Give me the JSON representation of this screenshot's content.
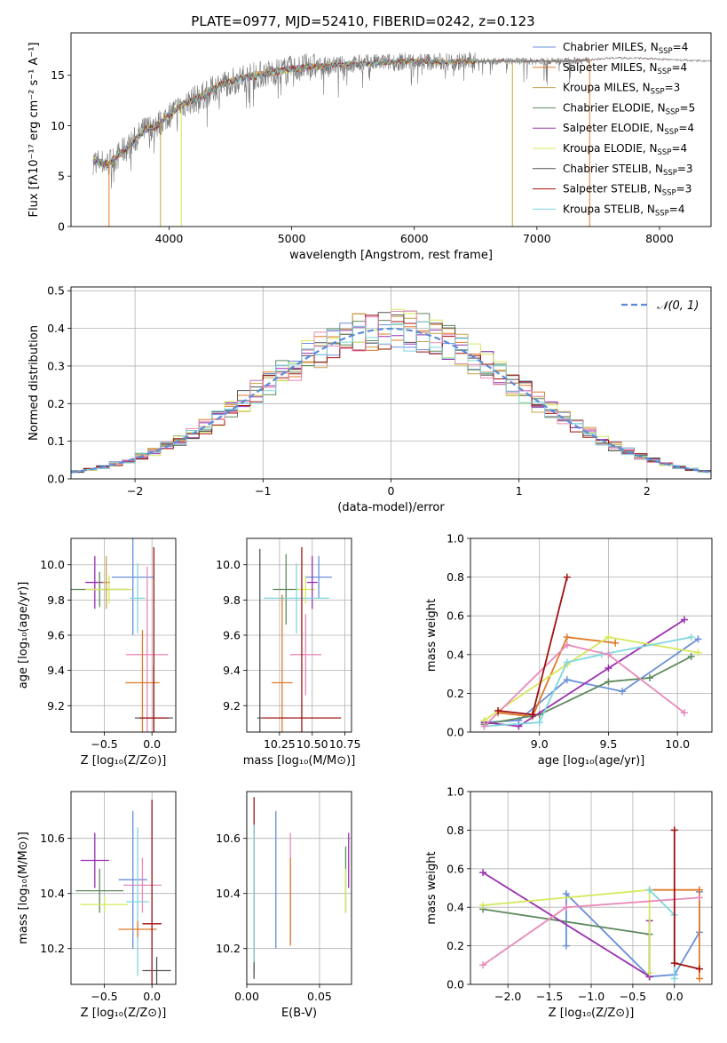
{
  "chart_data": [
    {
      "id": "spectrum",
      "type": "line",
      "title": "PLATE=0977, MJD=52410, FIBERID=0242, z=0.123",
      "xlabel": "wavelength [Angstrom, rest frame]",
      "ylabel": "Flux [fλ10⁻¹⁷ erg cm⁻² s⁻¹ A⁻¹]",
      "xlim": [
        3200,
        8420
      ],
      "ylim": [
        0,
        19.2
      ],
      "xticks": [
        4000,
        5000,
        6000,
        7000,
        8000
      ],
      "yticks": [
        0,
        5,
        10,
        15
      ],
      "grid": false,
      "legend_position": "top-right",
      "spectrum_knots": {
        "x": [
          3380,
          3500,
          3600,
          3700,
          3800,
          3900,
          4000,
          4100,
          4200,
          4300,
          4400,
          4600,
          4800,
          5000,
          5200,
          5500,
          5800,
          6000,
          6200,
          6500,
          6800,
          7000,
          7200,
          7400,
          7600,
          7800,
          8000,
          8200,
          8400
        ],
        "y": [
          6.5,
          6.2,
          7.2,
          8.3,
          9.6,
          10.0,
          11.1,
          12.0,
          12.6,
          13.1,
          14.0,
          14.7,
          15.2,
          15.6,
          15.9,
          16.1,
          16.3,
          16.4,
          16.3,
          16.4,
          16.4,
          16.4,
          16.4,
          16.5,
          16.7,
          16.7,
          16.6,
          16.5,
          16.4
        ]
      },
      "legend": [
        {
          "label": "Chabrier MILES, N",
          "sub": "SSP",
          "suffix": "=4",
          "color": "#6a8fd9"
        },
        {
          "label": "Salpeter MILES, N",
          "sub": "SSP",
          "suffix": "=4",
          "color": "#e07b2a"
        },
        {
          "label": "Kroupa MILES, N",
          "sub": "SSP",
          "suffix": "=3",
          "color": "#c8a24a"
        },
        {
          "label": "Chabrier ELODIE, N",
          "sub": "SSP",
          "suffix": "=5",
          "color": "#5e8a5e"
        },
        {
          "label": "Salpeter ELODIE, N",
          "sub": "SSP",
          "suffix": "=4",
          "color": "#9b2fb0"
        },
        {
          "label": "Kroupa ELODIE, N",
          "sub": "SSP",
          "suffix": "=4",
          "color": "#d6e85a"
        },
        {
          "label": "Chabrier STELIB, N",
          "sub": "SSP",
          "suffix": "=3",
          "color": "#555555"
        },
        {
          "label": "Salpeter STELIB, N",
          "sub": "SSP",
          "suffix": "=3",
          "color": "#a01010"
        },
        {
          "label": "Kroupa STELIB, N",
          "sub": "SSP",
          "suffix": "=4",
          "color": "#7fd6df"
        }
      ]
    },
    {
      "id": "residuals",
      "type": "line",
      "xlabel": "(data-model)/error",
      "ylabel": "Normed distribution",
      "xlim": [
        -2.5,
        2.5
      ],
      "ylim": [
        0,
        0.51
      ],
      "xticks": [
        -2,
        -1,
        0,
        1,
        2
      ],
      "yticks": [
        0.0,
        0.1,
        0.2,
        0.3,
        0.4,
        0.5
      ],
      "grid": true,
      "legend_position": "top-right",
      "reference_label": "𝒩(0, 1)",
      "reference_color": "#5b8bd6",
      "bin_width": 0.1,
      "hist_colors": [
        "#6a8fd9",
        "#e07b2a",
        "#c8a24a",
        "#5e8a5e",
        "#9b2fb0",
        "#d6e85a",
        "#555555",
        "#a01010",
        "#e889b8",
        "#7fd6df"
      ]
    },
    {
      "id": "age_vs_Z",
      "type": "scatter",
      "xlabel": "Z [log₁₀(Z/Z⊙)]",
      "ylabel": "age  [log₁₀(age/yr)]",
      "xlim": [
        -0.85,
        0.25
      ],
      "ylim": [
        9.05,
        10.15
      ],
      "xticks": [
        -0.5,
        0.0
      ],
      "yticks": [
        9.2,
        9.4,
        9.6,
        9.8,
        10.0
      ],
      "grid": true,
      "points": [
        {
          "x": -0.6,
          "y": 9.9,
          "xerr": 0.1,
          "yerr": 0.15,
          "color": "#9b2fb0"
        },
        {
          "x": -0.55,
          "y": 9.86,
          "xerr": 0.3,
          "yerr": 0.1,
          "color": "#5e8a5e"
        },
        {
          "x": -0.45,
          "y": 9.86,
          "xerr": 0.25,
          "yerr": 0.08,
          "color": "#d6e85a"
        },
        {
          "x": -0.48,
          "y": 9.9,
          "xerr": 0.04,
          "yerr": 0.15,
          "color": "#c8a24a"
        },
        {
          "x": -0.2,
          "y": 9.93,
          "xerr": 0.22,
          "yerr": 0.33,
          "color": "#6a8fd9"
        },
        {
          "x": -0.15,
          "y": 9.81,
          "xerr": 0.08,
          "yerr": 0.2,
          "color": "#7fd6df"
        },
        {
          "x": -0.05,
          "y": 9.49,
          "xerr": 0.22,
          "yerr": 0.5,
          "color": "#e889b8"
        },
        {
          "x": -0.1,
          "y": 9.33,
          "xerr": 0.18,
          "yerr": 0.3,
          "color": "#e07b2a"
        },
        {
          "x": 0.02,
          "y": 9.13,
          "xerr": 0.2,
          "yerr": 0.3,
          "color": "#555555"
        },
        {
          "x": 0.02,
          "y": 9.13,
          "xerr": 0.15,
          "yerr": 0.97,
          "color": "#a01010"
        }
      ]
    },
    {
      "id": "age_vs_mass",
      "type": "scatter",
      "xlabel": "mass [log₁₀(M/M⊙)]",
      "ylabel": "",
      "xlim": [
        10.0,
        10.8
      ],
      "ylim": [
        9.05,
        10.15
      ],
      "xticks": [
        10.25,
        10.5,
        10.75
      ],
      "yticks": [
        9.2,
        9.4,
        9.6,
        9.8,
        10.0
      ],
      "grid": true,
      "points": [
        {
          "x": 10.55,
          "y": 9.93,
          "xerr": 0.1,
          "yerr": 0.12,
          "color": "#6a8fd9"
        },
        {
          "x": 10.3,
          "y": 9.86,
          "xerr": 0.1,
          "yerr": 0.2,
          "color": "#5e8a5e"
        },
        {
          "x": 10.45,
          "y": 9.86,
          "xerr": 0.07,
          "yerr": 0.08,
          "color": "#d6e85a"
        },
        {
          "x": 10.5,
          "y": 9.9,
          "xerr": 0.04,
          "yerr": 0.15,
          "color": "#9b2fb0"
        },
        {
          "x": 10.38,
          "y": 9.81,
          "xerr": 0.25,
          "yerr": 0.2,
          "color": "#7fd6df"
        },
        {
          "x": 10.45,
          "y": 9.49,
          "xerr": 0.12,
          "yerr": 0.23,
          "color": "#e889b8"
        },
        {
          "x": 10.27,
          "y": 9.33,
          "xerr": 0.08,
          "yerr": 0.5,
          "color": "#e07b2a"
        },
        {
          "x": 10.1,
          "y": 9.13,
          "xerr": 0.02,
          "yerr": 0.96,
          "color": "#555555"
        },
        {
          "x": 10.42,
          "y": 9.13,
          "xerr": 0.3,
          "yerr": 0.97,
          "color": "#a01010"
        }
      ]
    },
    {
      "id": "weight_vs_age",
      "type": "line",
      "xlabel": "age  [log₁₀(age/yr)]",
      "ylabel": "mass weight",
      "xlim": [
        8.5,
        10.25
      ],
      "ylim": [
        0,
        1.0
      ],
      "xticks": [
        9.0,
        9.5,
        10.0
      ],
      "yticks": [
        0.0,
        0.2,
        0.4,
        0.6,
        0.8,
        1.0
      ],
      "grid": true,
      "series": [
        {
          "color": "#6a8fd9",
          "x": [
            8.6,
            8.85,
            9.2,
            9.6,
            10.15
          ],
          "y": [
            0.05,
            0.06,
            0.27,
            0.21,
            0.48
          ]
        },
        {
          "color": "#e07b2a",
          "x": [
            8.7,
            8.95,
            9.2,
            9.55
          ],
          "y": [
            0.1,
            0.08,
            0.49,
            0.46
          ]
        },
        {
          "color": "#5e8a5e",
          "x": [
            8.6,
            9.0,
            9.5,
            9.8,
            10.1
          ],
          "y": [
            0.04,
            0.09,
            0.26,
            0.28,
            0.39
          ]
        },
        {
          "color": "#9b2fb0",
          "x": [
            8.6,
            8.85,
            9.5,
            10.05
          ],
          "y": [
            0.05,
            0.03,
            0.33,
            0.58
          ]
        },
        {
          "color": "#d6e85a",
          "x": [
            8.6,
            9.2,
            9.5,
            10.15
          ],
          "y": [
            0.06,
            0.35,
            0.49,
            0.41
          ]
        },
        {
          "color": "#7fd6df",
          "x": [
            8.6,
            9.0,
            9.2,
            9.45,
            10.1
          ],
          "y": [
            0.03,
            0.05,
            0.36,
            0.4,
            0.49
          ]
        },
        {
          "color": "#e889b8",
          "x": [
            8.6,
            9.2,
            9.5,
            10.05
          ],
          "y": [
            0.03,
            0.45,
            0.4,
            0.1
          ]
        },
        {
          "color": "#a01010",
          "x": [
            8.7,
            8.95,
            9.2
          ],
          "y": [
            0.11,
            0.09,
            0.8
          ]
        }
      ]
    },
    {
      "id": "mass_vs_Z",
      "type": "scatter",
      "xlabel": "Z [log₁₀(Z/Z⊙)]",
      "ylabel": "mass [log₁₀(M/M⊙)]",
      "xlim": [
        -0.85,
        0.25
      ],
      "ylim": [
        10.07,
        10.77
      ],
      "xticks": [
        -0.5,
        0.0
      ],
      "yticks": [
        10.2,
        10.4,
        10.6
      ],
      "grid": true,
      "points": [
        {
          "x": -0.6,
          "y": 10.52,
          "xerr": 0.15,
          "yerr": 0.1,
          "color": "#9b2fb0"
        },
        {
          "x": -0.55,
          "y": 10.41,
          "xerr": 0.25,
          "yerr": 0.08,
          "color": "#5e8a5e"
        },
        {
          "x": -0.5,
          "y": 10.36,
          "xerr": 0.25,
          "yerr": 0.03,
          "color": "#d6e85a"
        },
        {
          "x": -0.2,
          "y": 10.45,
          "xerr": 0.15,
          "yerr": 0.25,
          "color": "#6a8fd9"
        },
        {
          "x": -0.1,
          "y": 10.43,
          "xerr": 0.2,
          "yerr": 0.1,
          "color": "#e889b8"
        },
        {
          "x": -0.15,
          "y": 10.37,
          "xerr": 0.12,
          "yerr": 0.27,
          "color": "#7fd6df"
        },
        {
          "x": -0.15,
          "y": 10.27,
          "xerr": 0.2,
          "yerr": 0.03,
          "color": "#e07b2a"
        },
        {
          "x": 0.0,
          "y": 10.29,
          "xerr": 0.1,
          "yerr": 0.45,
          "color": "#a01010"
        },
        {
          "x": 0.05,
          "y": 10.12,
          "xerr": 0.15,
          "yerr": 0.05,
          "color": "#555555"
        }
      ]
    },
    {
      "id": "mass_vs_ebv",
      "type": "scatter",
      "xlabel": "E(B-V)",
      "ylabel": "",
      "xlim": [
        0.0,
        0.072
      ],
      "ylim": [
        10.07,
        10.77
      ],
      "xticks": [
        0.0,
        0.05
      ],
      "yticks": [
        10.2,
        10.4,
        10.6
      ],
      "grid": true,
      "points": [
        {
          "x": 0.005,
          "y": 10.45,
          "xerr": 0.0,
          "yerr": 0.3,
          "color": "#a01010"
        },
        {
          "x": 0.005,
          "y": 10.38,
          "xerr": 0.0,
          "yerr": 0.27,
          "color": "#7fd6df"
        },
        {
          "x": 0.005,
          "y": 10.12,
          "xerr": 0.0,
          "yerr": 0.03,
          "color": "#555555"
        },
        {
          "x": 0.02,
          "y": 10.45,
          "xerr": 0.0,
          "yerr": 0.25,
          "color": "#6a8fd9"
        },
        {
          "x": 0.03,
          "y": 10.42,
          "xerr": 0.0,
          "yerr": 0.2,
          "color": "#e889b8"
        },
        {
          "x": 0.03,
          "y": 10.37,
          "xerr": 0.0,
          "yerr": 0.16,
          "color": "#e07b2a"
        },
        {
          "x": 0.068,
          "y": 10.45,
          "xerr": 0.0,
          "yerr": 0.12,
          "color": "#5e8a5e"
        },
        {
          "x": 0.068,
          "y": 10.41,
          "xerr": 0.0,
          "yerr": 0.08,
          "color": "#d6e85a"
        },
        {
          "x": 0.07,
          "y": 10.52,
          "xerr": 0.0,
          "yerr": 0.1,
          "color": "#9b2fb0"
        }
      ]
    },
    {
      "id": "weight_vs_Z",
      "type": "line",
      "xlabel": "Z [log₁₀(Z/Z⊙)]",
      "ylabel": "mass weight",
      "xlim": [
        -2.45,
        0.45
      ],
      "ylim": [
        0,
        1.0
      ],
      "xticks": [
        -2.0,
        -1.5,
        -1.0,
        -0.5,
        0.0
      ],
      "yticks": [
        0.0,
        0.2,
        0.4,
        0.6,
        0.8,
        1.0
      ],
      "grid": true,
      "series": [
        {
          "color": "#6a8fd9",
          "x": [
            -1.3,
            -1.3,
            -0.3,
            0.0,
            0.3,
            0.3
          ],
          "y": [
            0.2,
            0.47,
            0.04,
            0.05,
            0.27,
            0.48
          ]
        },
        {
          "color": "#e07b2a",
          "x": [
            -0.3,
            0.3,
            0.3
          ],
          "y": [
            0.49,
            0.49,
            0.03
          ]
        },
        {
          "color": "#5e8a5e",
          "x": [
            -2.3,
            -0.3,
            -0.3
          ],
          "y": [
            0.39,
            0.26,
            0.04
          ]
        },
        {
          "color": "#9b2fb0",
          "x": [
            -2.3,
            -0.3,
            -0.3
          ],
          "y": [
            0.58,
            0.04,
            0.33
          ]
        },
        {
          "color": "#d6e85a",
          "x": [
            -2.3,
            -0.3,
            -0.3
          ],
          "y": [
            0.41,
            0.49,
            0.06
          ]
        },
        {
          "color": "#7fd6df",
          "x": [
            -0.3,
            0.0,
            0.0
          ],
          "y": [
            0.49,
            0.36,
            0.03
          ]
        },
        {
          "color": "#e889b8",
          "x": [
            -2.3,
            -1.3,
            0.3
          ],
          "y": [
            0.1,
            0.4,
            0.45
          ]
        },
        {
          "color": "#a01010",
          "x": [
            0.0,
            0.0,
            0.3
          ],
          "y": [
            0.8,
            0.11,
            0.08
          ]
        }
      ]
    }
  ]
}
